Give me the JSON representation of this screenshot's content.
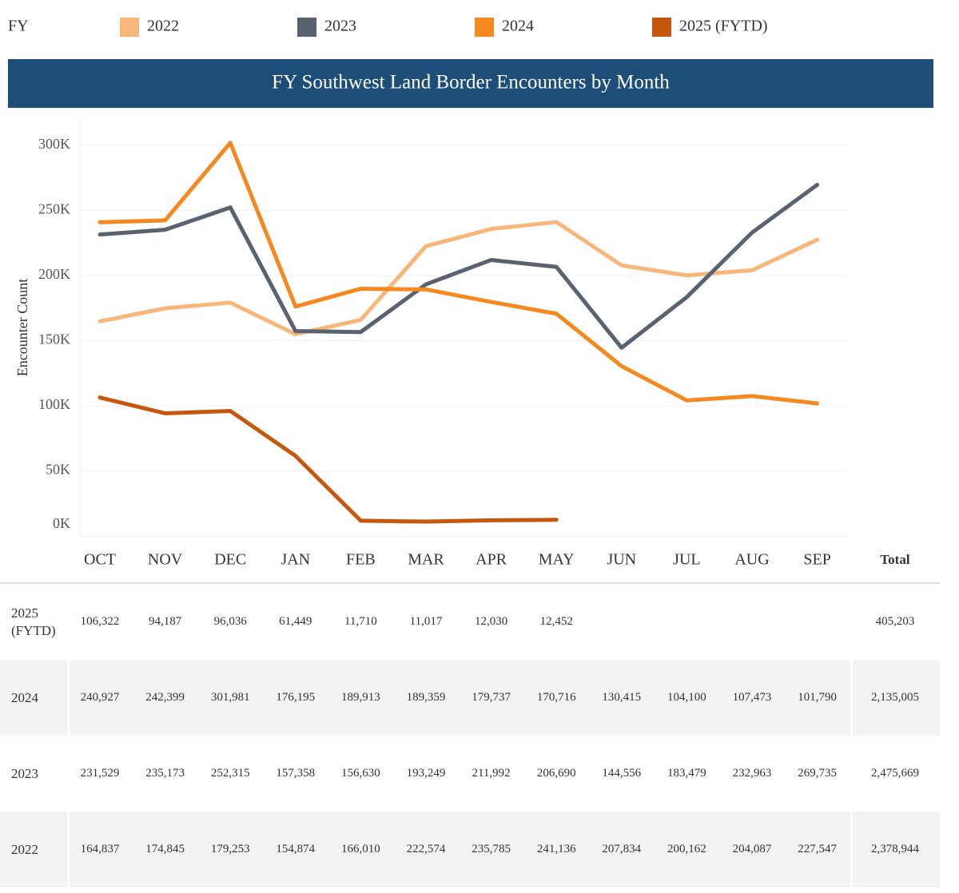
{
  "chart_data": {
    "type": "line",
    "title": "FY Southwest Land Border Encounters by Month",
    "legend_title": "FY",
    "y_label": "Encounter Count",
    "total_header": "Total",
    "categories": [
      "OCT",
      "NOV",
      "DEC",
      "JAN",
      "FEB",
      "MAR",
      "APR",
      "MAY",
      "JUN",
      "JUL",
      "AUG",
      "SEP"
    ],
    "ylim": [
      0,
      320000
    ],
    "yticks": [
      {
        "value": 0,
        "label": "0K"
      },
      {
        "value": 50000,
        "label": "50K"
      },
      {
        "value": 100000,
        "label": "100K"
      },
      {
        "value": 150000,
        "label": "150K"
      },
      {
        "value": 200000,
        "label": "200K"
      },
      {
        "value": 250000,
        "label": "250K"
      },
      {
        "value": 300000,
        "label": "300K"
      }
    ],
    "grid": true,
    "series": [
      {
        "name": "2022",
        "color": "#f8b77a",
        "values": [
          164837,
          174845,
          179253,
          154874,
          166010,
          222574,
          235785,
          241136,
          207834,
          200162,
          204087,
          227547
        ],
        "value_labels": [
          "164,837",
          "174,845",
          "179,253",
          "154,874",
          "166,010",
          "222,574",
          "235,785",
          "241,136",
          "207,834",
          "200,162",
          "204,087",
          "227,547"
        ],
        "total": "2,378,944"
      },
      {
        "name": "2023",
        "color": "#5a6270",
        "values": [
          231529,
          235173,
          252315,
          157358,
          156630,
          193249,
          211992,
          206690,
          144556,
          183479,
          232963,
          269735
        ],
        "value_labels": [
          "231,529",
          "235,173",
          "252,315",
          "157,358",
          "156,630",
          "193,249",
          "211,992",
          "206,690",
          "144,556",
          "183,479",
          "232,963",
          "269,735"
        ],
        "total": "2,475,669"
      },
      {
        "name": "2024",
        "color": "#f5891f",
        "values": [
          240927,
          242399,
          301981,
          176195,
          189913,
          189359,
          179737,
          170716,
          130415,
          104100,
          107473,
          101790
        ],
        "value_labels": [
          "240,927",
          "242,399",
          "301,981",
          "176,195",
          "189,913",
          "189,359",
          "179,737",
          "170,716",
          "130,415",
          "104,100",
          "107,473",
          "101,790"
        ],
        "total": "2,135,005"
      },
      {
        "name": "2025 (FYTD)",
        "color": "#c5570f",
        "values": [
          106322,
          94187,
          96036,
          61449,
          11710,
          11017,
          12030,
          12452,
          null,
          null,
          null,
          null
        ],
        "value_labels": [
          "106,322",
          "94,187",
          "96,036",
          "61,449",
          "11,710",
          "11,017",
          "12,030",
          "12,452",
          null,
          null,
          null,
          null
        ],
        "total": "405,203"
      }
    ]
  }
}
